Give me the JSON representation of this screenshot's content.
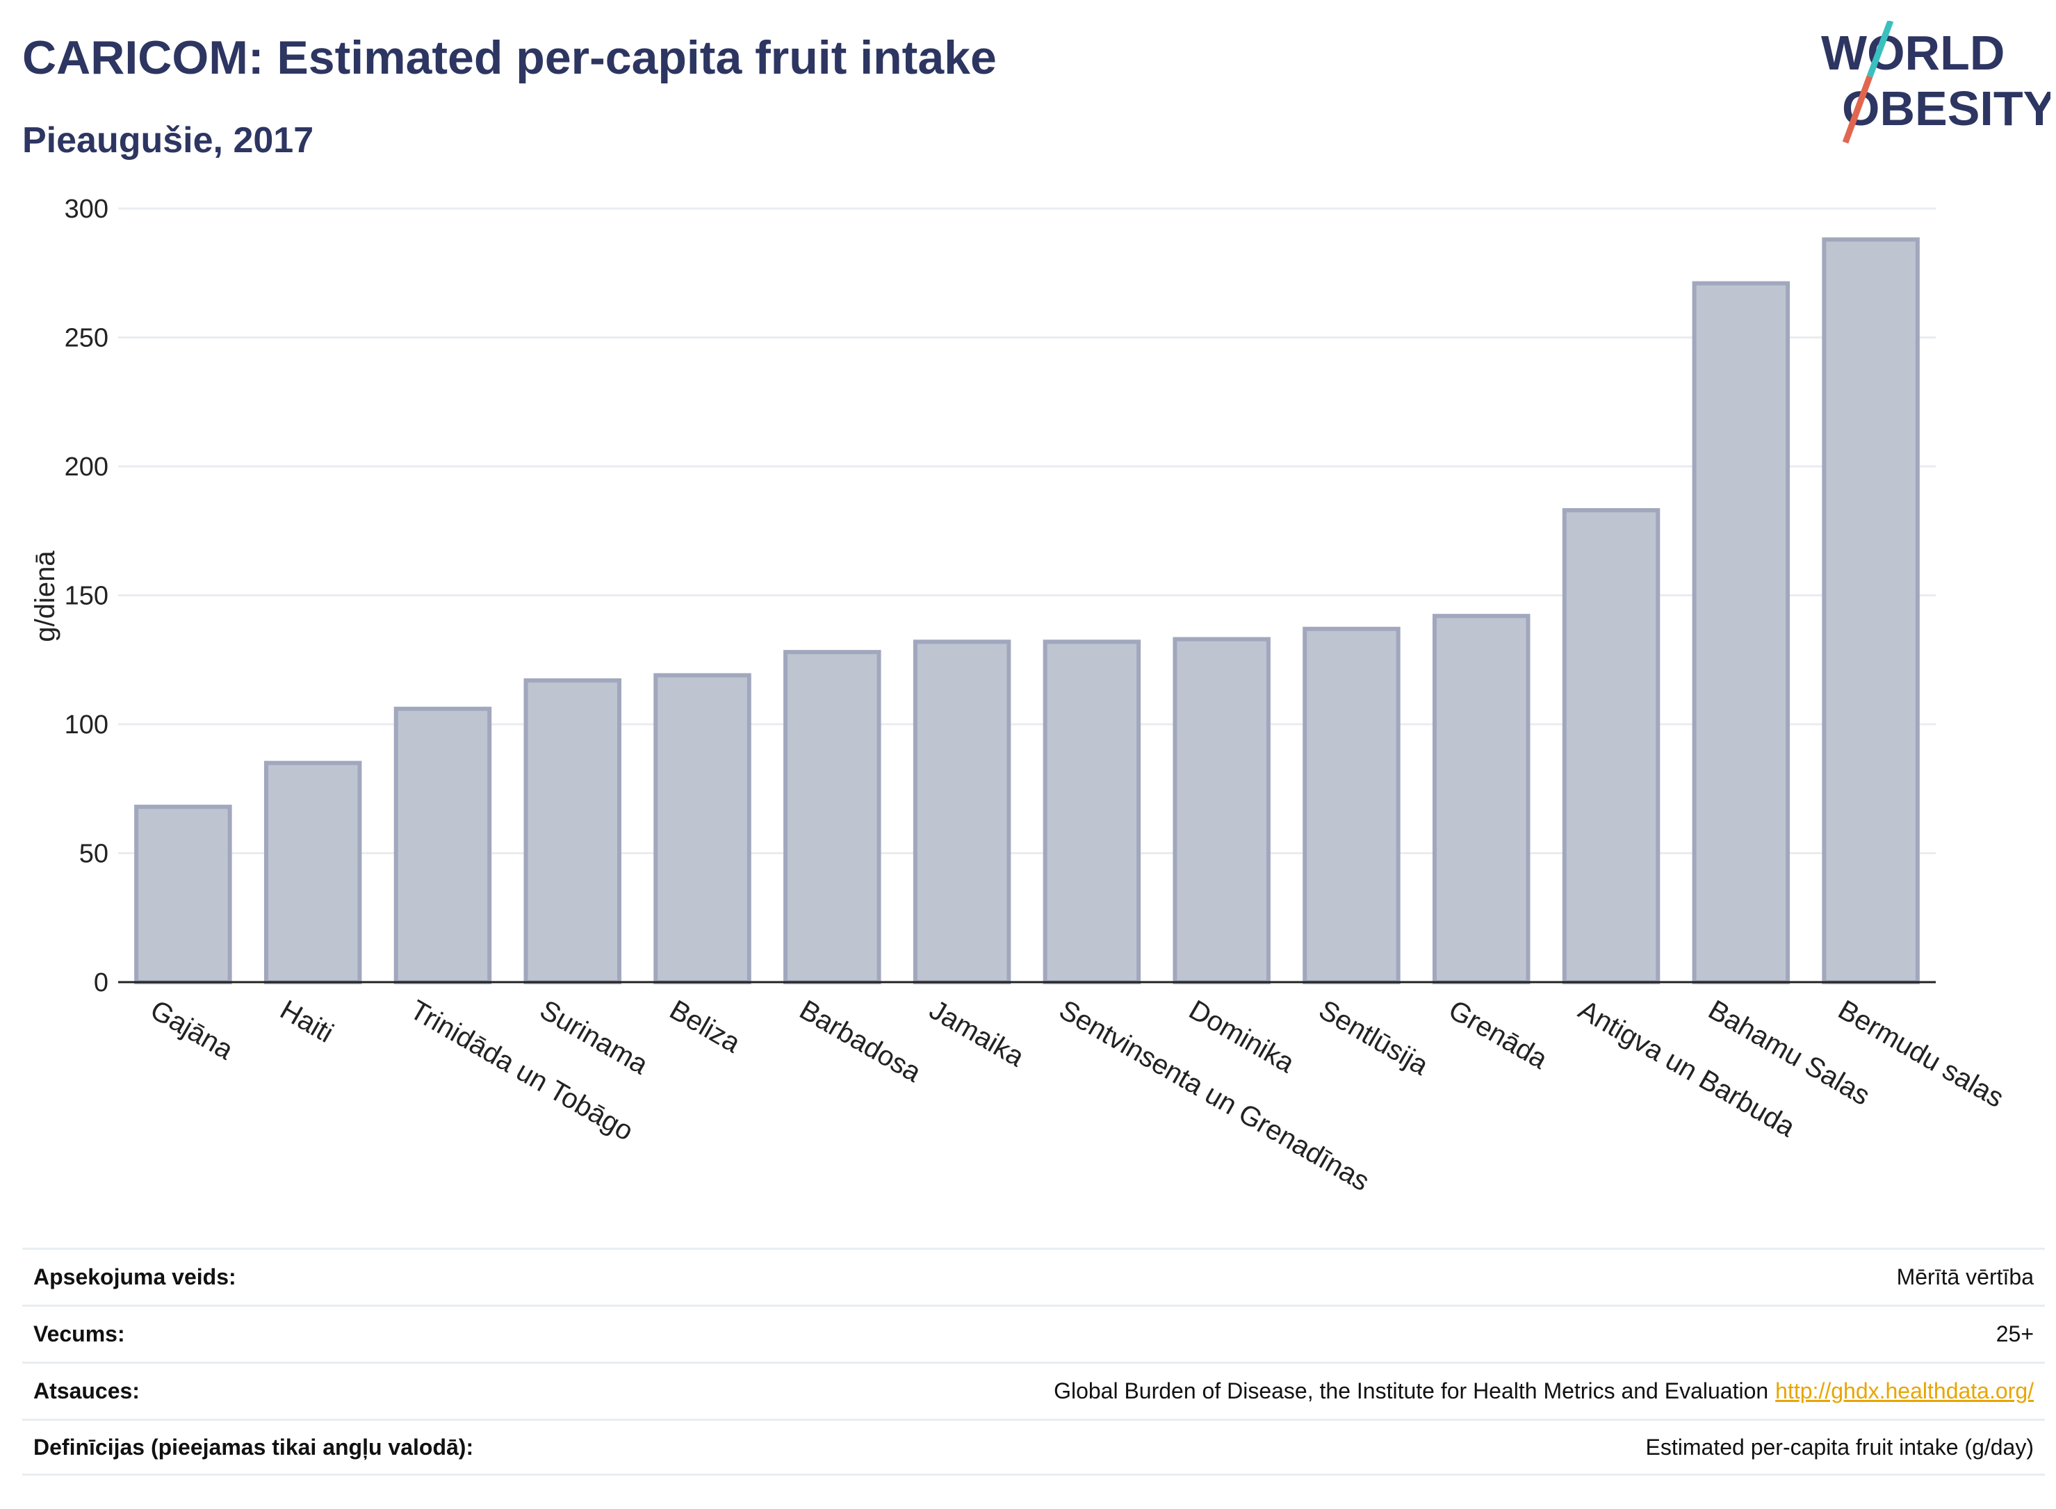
{
  "header": {
    "title": "CARICOM: Estimated per-capita fruit intake",
    "subtitle": "Pieaugušie, 2017"
  },
  "logo": {
    "line1": "WORLD",
    "line2": "OBESITY",
    "colors": {
      "text": "#2d3561",
      "slash_top": "#3bbfbf",
      "slash_bottom": "#e2664f"
    }
  },
  "chart_data": {
    "type": "bar",
    "categories": [
      "Gajāna",
      "Haiti",
      "Trinidāda un Tobāgo",
      "Surinama",
      "Beliza",
      "Barbadosa",
      "Jamaika",
      "Sentvinsenta un Grenadīnas",
      "Dominika",
      "Sentlūsija",
      "Grenāda",
      "Antigva un Barbuda",
      "Bahamu Salas",
      "Bermudu salas"
    ],
    "values": [
      68,
      85,
      106,
      117,
      119,
      128,
      132,
      132,
      133,
      137,
      142,
      183,
      271,
      288
    ],
    "ylabel": "g/dienā",
    "ylim": [
      0,
      300
    ],
    "yticks": [
      0,
      50,
      100,
      150,
      200,
      250,
      300
    ],
    "grid": true,
    "colors": {
      "bar_fill": "#bfc4d1",
      "bar_stroke": "#a1a7bd",
      "grid": "#e9ecf0",
      "axis": "#222222"
    }
  },
  "metadata_table": [
    {
      "label": "Apsekojuma veids:",
      "value": "Mērītā vērtība"
    },
    {
      "label": "Vecums:",
      "value": "25+"
    },
    {
      "label": "Atsauces:",
      "value": "Global Burden of Disease, the Institute for Health Metrics and Evaluation",
      "link": "http://ghdx.healthdata.org/"
    },
    {
      "label": "Definīcijas (pieejamas tikai angļu valodā):",
      "value": "Estimated per-capita fruit intake (g/day)"
    }
  ]
}
